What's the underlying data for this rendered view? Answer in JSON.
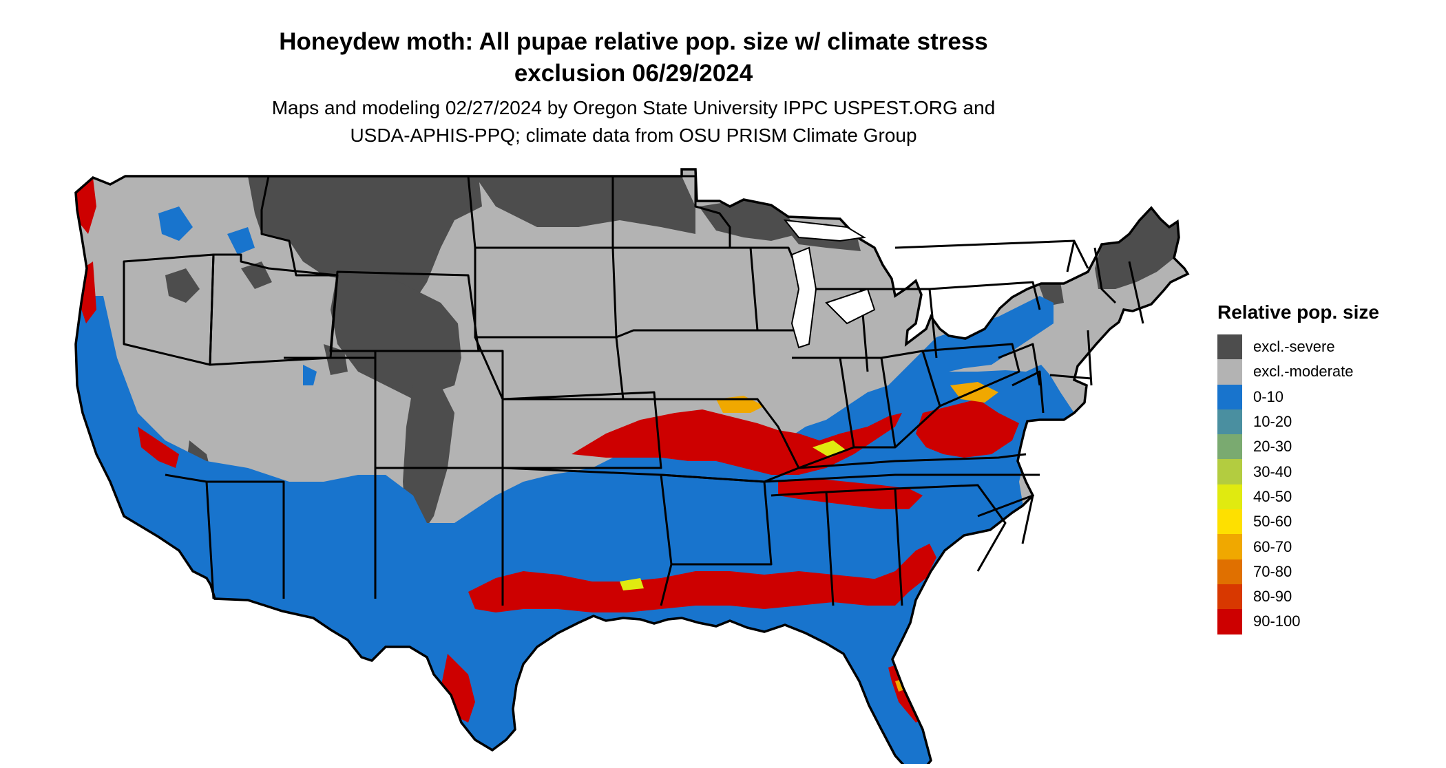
{
  "title_line1": "Honeydew moth: All pupae relative pop. size w/ climate stress",
  "title_line2": "exclusion 06/29/2024",
  "subtitle_line1": "Maps and modeling 02/27/2024 by Oregon State University IPPC USPEST.ORG and",
  "subtitle_line2": "USDA-APHIS-PPQ; climate data from OSU PRISM Climate Group",
  "legend": {
    "title": "Relative pop. size",
    "items": [
      {
        "label": "excl.-severe",
        "color": "#4d4d4d"
      },
      {
        "label": "excl.-moderate",
        "color": "#b3b3b3"
      },
      {
        "label": "0-10",
        "color": "#1874cd"
      },
      {
        "label": "10-20",
        "color": "#4a8fa0"
      },
      {
        "label": "20-30",
        "color": "#7aaa70"
      },
      {
        "label": "30-40",
        "color": "#b3cc40"
      },
      {
        "label": "40-50",
        "color": "#e0ea10"
      },
      {
        "label": "50-60",
        "color": "#fee000"
      },
      {
        "label": "60-70",
        "color": "#f0a800"
      },
      {
        "label": "70-80",
        "color": "#e07000"
      },
      {
        "label": "80-90",
        "color": "#d83800"
      },
      {
        "label": "90-100",
        "color": "#cd0000"
      }
    ]
  }
}
